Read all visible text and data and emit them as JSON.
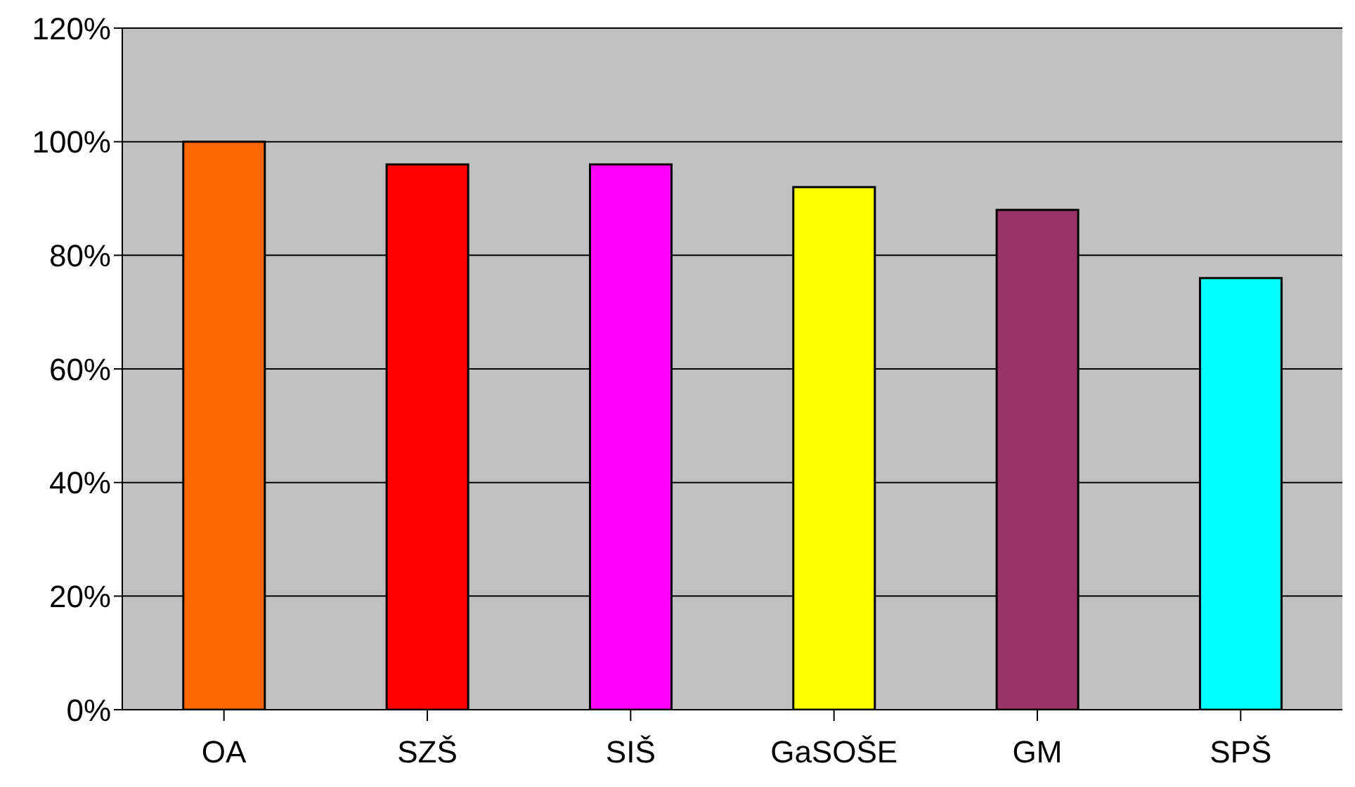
{
  "chart_data": {
    "type": "bar",
    "categories": [
      "OA",
      "SZŠ",
      "SIŠ",
      "GaSOŠE",
      "GM",
      "SPŠ"
    ],
    "values": [
      100,
      96,
      96,
      92,
      88,
      76
    ],
    "colors": [
      "#ff6600",
      "#ff0000",
      "#ff00ff",
      "#ffff00",
      "#993366",
      "#00ffff"
    ],
    "ylim": [
      0,
      120
    ],
    "yticks": [
      {
        "value": 0,
        "label": "0%"
      },
      {
        "value": 20,
        "label": "20%"
      },
      {
        "value": 40,
        "label": "40%"
      },
      {
        "value": 60,
        "label": "60%"
      },
      {
        "value": 80,
        "label": "80%"
      },
      {
        "value": 100,
        "label": "100%"
      },
      {
        "value": 120,
        "label": "120%"
      }
    ],
    "grid": "y"
  }
}
